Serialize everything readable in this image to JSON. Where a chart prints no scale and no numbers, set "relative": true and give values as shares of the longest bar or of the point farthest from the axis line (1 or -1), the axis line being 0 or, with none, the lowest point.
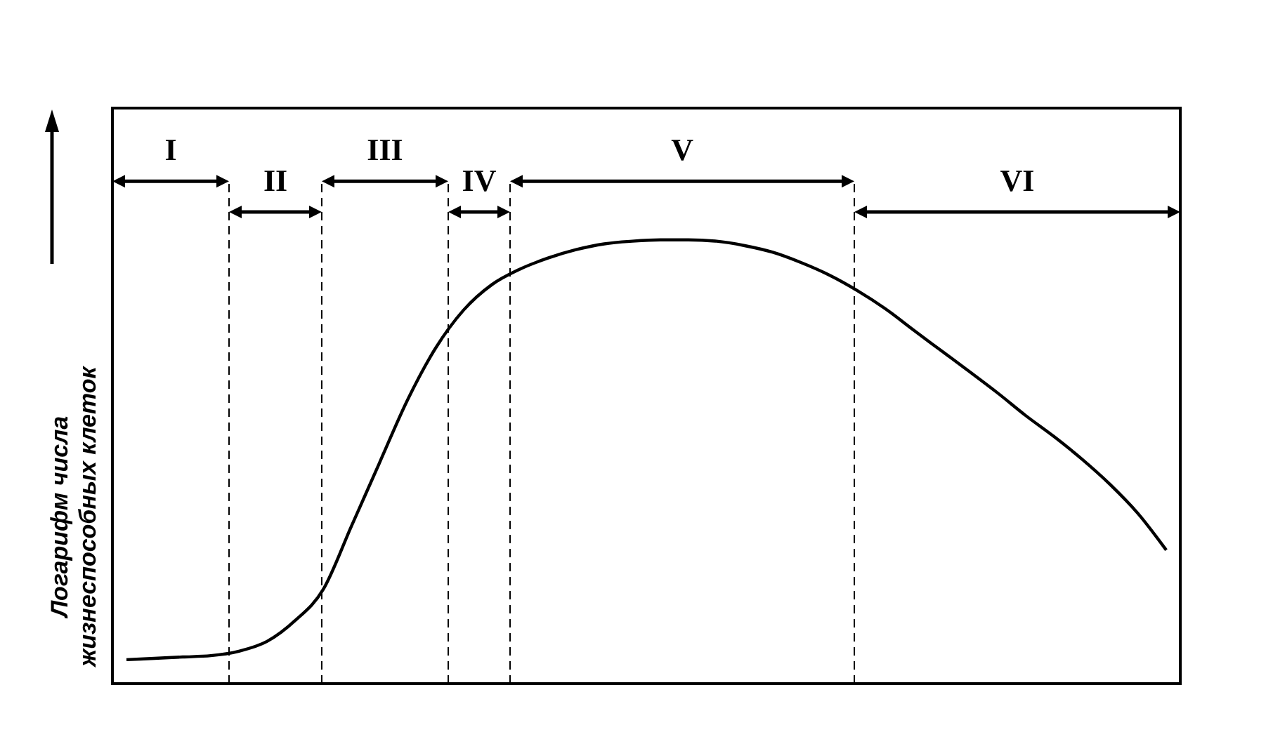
{
  "chart_data": {
    "type": "line",
    "relative": true,
    "ylabel": "Логарифм числа\nжизнеспособных клеток",
    "tick_labels": false,
    "color": "#000000",
    "categories": [
      null,
      null,
      null,
      null,
      null,
      null,
      null,
      null,
      null,
      null,
      null,
      null,
      null,
      null,
      null,
      null,
      null,
      null,
      null,
      null,
      null,
      null,
      null,
      null,
      null,
      null,
      null,
      null,
      null,
      null,
      null,
      null,
      null,
      null,
      null,
      null,
      null,
      null
    ],
    "values": [
      0.054,
      0.057,
      0.06,
      0.063,
      0.073,
      0.095,
      0.142,
      0.212,
      0.354,
      0.497,
      0.639,
      0.756,
      0.842,
      0.899,
      0.934,
      0.959,
      0.978,
      0.991,
      0.997,
      1,
      1,
      0.997,
      0.987,
      0.972,
      0.949,
      0.921,
      0.886,
      0.845,
      0.797,
      0.75,
      0.703,
      0.655,
      0.604,
      0.557,
      0.506,
      0.449,
      0.383,
      0.301
    ],
    "annotations": [
      "I",
      "II",
      "III",
      "IV",
      "V",
      "VI"
    ]
  }
}
